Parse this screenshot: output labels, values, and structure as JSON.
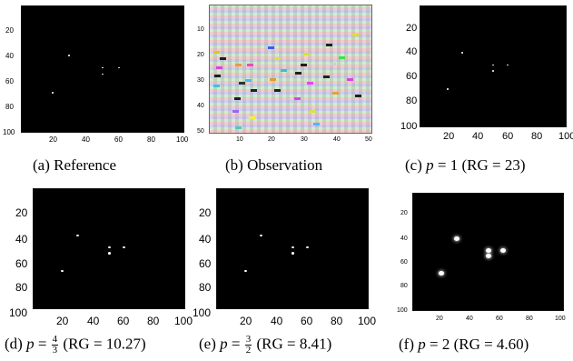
{
  "panels": [
    {
      "id": "a",
      "caption": {
        "prefix": "(a)",
        "text": "Reference"
      },
      "yticks": [
        "20",
        "40",
        "60",
        "80",
        "100"
      ],
      "xticks": [
        "20",
        "40",
        "60",
        "80",
        "100"
      ],
      "spots": [
        [
          29,
          39
        ],
        [
          50,
          49
        ],
        [
          50,
          54
        ],
        [
          60,
          49
        ],
        [
          19,
          69
        ]
      ]
    },
    {
      "id": "b",
      "caption": {
        "prefix": "(b)",
        "text": "Observation"
      },
      "yticks": [
        "10",
        "20",
        "30",
        "40",
        "50"
      ],
      "xticks": [
        "10",
        "20",
        "30",
        "40",
        "50"
      ]
    },
    {
      "id": "c",
      "caption": {
        "prefix": "(c)",
        "var": "p",
        "eq": " = 1 (RG = 23)"
      },
      "yticks": [
        "20",
        "40",
        "60",
        "80",
        "100"
      ],
      "xticks": [
        "20",
        "40",
        "60",
        "80",
        "100"
      ],
      "spots": [
        [
          29,
          39
        ],
        [
          50,
          49
        ],
        [
          50,
          54
        ],
        [
          60,
          49
        ],
        [
          19,
          69
        ]
      ]
    },
    {
      "id": "d",
      "caption": {
        "prefix": "(d)",
        "var": "p",
        "eq_pre": " = ",
        "num": "4",
        "den": "3",
        "eq": " (RG = 10.27)"
      },
      "yticks": [
        "20",
        "40",
        "60",
        "80",
        "100"
      ],
      "xticks": [
        "20",
        "40",
        "60",
        "80",
        "100"
      ],
      "spots": [
        [
          29,
          39
        ],
        [
          50,
          49
        ],
        [
          50,
          54
        ],
        [
          60,
          49
        ],
        [
          19,
          69
        ]
      ]
    },
    {
      "id": "e",
      "caption": {
        "prefix": "(e)",
        "var": "p",
        "eq_pre": " = ",
        "num": "3",
        "den": "2",
        "eq": " (RG = 8.41)"
      },
      "yticks": [
        "20",
        "40",
        "60",
        "80",
        "100"
      ],
      "xticks": [
        "20",
        "40",
        "60",
        "80",
        "100"
      ],
      "spots": [
        [
          29,
          39
        ],
        [
          50,
          49
        ],
        [
          50,
          54
        ],
        [
          60,
          49
        ],
        [
          19,
          69
        ]
      ]
    },
    {
      "id": "f",
      "caption": {
        "prefix": "(f)",
        "var": "p",
        "eq": " = 2 (RG = 4.60)"
      },
      "yticks": [
        "20",
        "40",
        "60",
        "80",
        "100"
      ],
      "xticks": [
        "20",
        "40",
        "60",
        "80",
        "100"
      ],
      "spots": [
        [
          29,
          39
        ],
        [
          50,
          49
        ],
        [
          50,
          54
        ],
        [
          60,
          49
        ],
        [
          19,
          69
        ]
      ]
    }
  ]
}
